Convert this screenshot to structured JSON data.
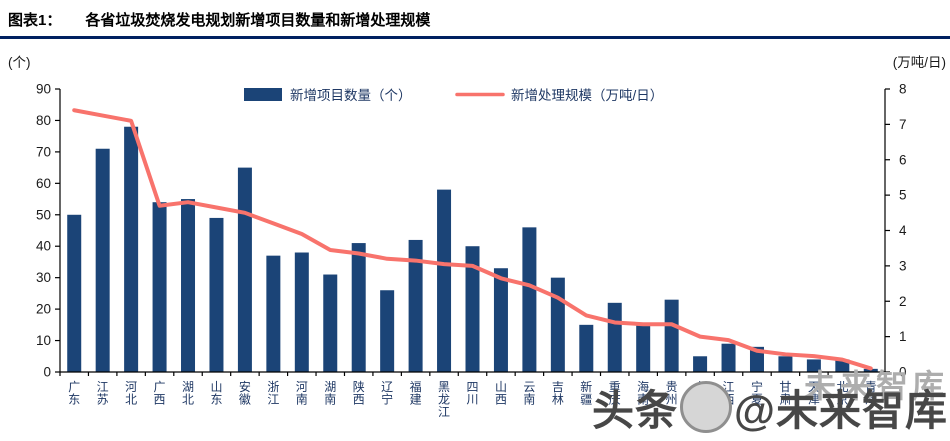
{
  "header": {
    "label": "图表1：",
    "title": "各省垃圾焚烧发电规划新增项目数量和新增处理规模"
  },
  "chart_data": {
    "type": "bar",
    "title": "各省垃圾焚烧发电规划新增项目数量和新增处理规模",
    "categories": [
      "广东",
      "江苏",
      "河北",
      "广西",
      "湖北",
      "山东",
      "安徽",
      "浙江",
      "河南",
      "湖南",
      "陕西",
      "辽宁",
      "福建",
      "黑龙江",
      "四川",
      "山西",
      "云南",
      "吉林",
      "新疆",
      "重庆",
      "海南",
      "贵州",
      "上海",
      "江西",
      "宁夏",
      "甘肃",
      "天津",
      "北京",
      "青海"
    ],
    "series": [
      {
        "name": "新增项目数量（个）",
        "type": "bar",
        "axis": "left",
        "color": "#1B4477",
        "values": [
          50,
          71,
          78,
          54,
          55,
          49,
          65,
          37,
          38,
          31,
          41,
          26,
          42,
          58,
          40,
          33,
          46,
          30,
          15,
          22,
          15,
          23,
          5,
          9,
          8,
          5,
          4,
          4,
          1
        ]
      },
      {
        "name": "新增处理规模（万吨/日）",
        "type": "line",
        "axis": "right",
        "color": "#F8736C",
        "values": [
          7.4,
          7.25,
          7.1,
          4.7,
          4.8,
          4.65,
          4.5,
          4.2,
          3.9,
          3.45,
          3.35,
          3.2,
          3.15,
          3.05,
          3.0,
          2.65,
          2.45,
          2.1,
          1.6,
          1.4,
          1.35,
          1.35,
          1.0,
          0.9,
          0.6,
          0.5,
          0.45,
          0.35,
          0.1
        ]
      }
    ],
    "left_axis": {
      "unit": "(个)",
      "min": 0,
      "max": 90,
      "step": 10
    },
    "right_axis": {
      "unit": "(万吨/日)",
      "min": 0,
      "max": 8,
      "step": 1
    },
    "legend_position": "top-center",
    "grid": false,
    "text_color": "#1F3864"
  },
  "watermark": {
    "ghost_text": "未来智库",
    "text_head": "头条",
    "text_tail": "@未来智库"
  }
}
